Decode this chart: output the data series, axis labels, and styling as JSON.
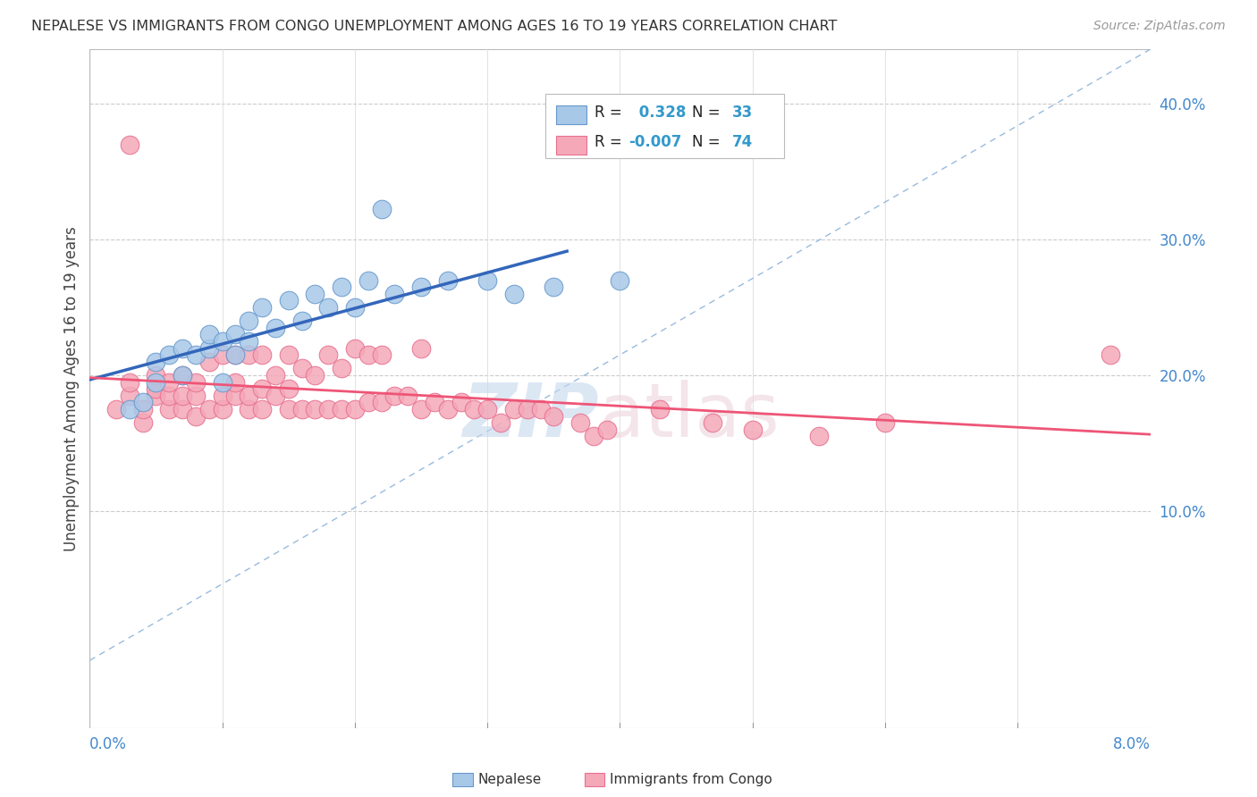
{
  "title": "NEPALESE VS IMMIGRANTS FROM CONGO UNEMPLOYMENT AMONG AGES 16 TO 19 YEARS CORRELATION CHART",
  "source": "Source: ZipAtlas.com",
  "ylabel": "Unemployment Among Ages 16 to 19 years",
  "legend_label1": "Nepalese",
  "legend_label2": "Immigrants from Congo",
  "nepalese_color": "#A8C8E8",
  "nepalese_edge": "#6699CC",
  "congo_color": "#F4A8B8",
  "congo_edge": "#E87090",
  "regression_blue": "#3366BB",
  "regression_pink": "#EE5577",
  "dashed_line_color": "#99BBDD",
  "background_color": "#FFFFFF",
  "grid_color": "#DDDDDD",
  "x_min": 0.0,
  "x_max": 0.08,
  "y_min": -0.06,
  "y_max": 0.44,
  "R_nep": 0.328,
  "N_nep": 33,
  "R_con": -0.007,
  "N_con": 74,
  "nep_x": [
    0.003,
    0.004,
    0.005,
    0.005,
    0.006,
    0.007,
    0.007,
    0.008,
    0.009,
    0.009,
    0.01,
    0.01,
    0.011,
    0.011,
    0.012,
    0.012,
    0.013,
    0.014,
    0.015,
    0.016,
    0.017,
    0.018,
    0.019,
    0.02,
    0.021,
    0.022,
    0.023,
    0.025,
    0.027,
    0.03,
    0.032,
    0.035,
    0.04
  ],
  "nep_y": [
    0.175,
    0.18,
    0.195,
    0.21,
    0.215,
    0.2,
    0.22,
    0.215,
    0.22,
    0.23,
    0.195,
    0.225,
    0.23,
    0.215,
    0.24,
    0.225,
    0.25,
    0.235,
    0.255,
    0.24,
    0.26,
    0.25,
    0.265,
    0.25,
    0.27,
    0.322,
    0.26,
    0.265,
    0.27,
    0.27,
    0.26,
    0.265,
    0.27
  ],
  "con_x": [
    0.002,
    0.003,
    0.003,
    0.004,
    0.004,
    0.005,
    0.005,
    0.005,
    0.006,
    0.006,
    0.006,
    0.007,
    0.007,
    0.007,
    0.008,
    0.008,
    0.008,
    0.009,
    0.009,
    0.01,
    0.01,
    0.01,
    0.011,
    0.011,
    0.011,
    0.012,
    0.012,
    0.012,
    0.013,
    0.013,
    0.013,
    0.014,
    0.014,
    0.015,
    0.015,
    0.015,
    0.016,
    0.016,
    0.017,
    0.017,
    0.018,
    0.018,
    0.019,
    0.019,
    0.02,
    0.02,
    0.021,
    0.021,
    0.022,
    0.022,
    0.023,
    0.024,
    0.025,
    0.025,
    0.026,
    0.027,
    0.028,
    0.029,
    0.03,
    0.031,
    0.032,
    0.033,
    0.034,
    0.035,
    0.037,
    0.038,
    0.039,
    0.043,
    0.047,
    0.05,
    0.055,
    0.06,
    0.077,
    0.003
  ],
  "con_y": [
    0.175,
    0.185,
    0.195,
    0.165,
    0.175,
    0.185,
    0.19,
    0.2,
    0.175,
    0.185,
    0.195,
    0.175,
    0.185,
    0.2,
    0.17,
    0.185,
    0.195,
    0.175,
    0.21,
    0.175,
    0.185,
    0.215,
    0.185,
    0.195,
    0.215,
    0.175,
    0.185,
    0.215,
    0.175,
    0.19,
    0.215,
    0.185,
    0.2,
    0.175,
    0.19,
    0.215,
    0.175,
    0.205,
    0.175,
    0.2,
    0.175,
    0.215,
    0.175,
    0.205,
    0.175,
    0.22,
    0.18,
    0.215,
    0.18,
    0.215,
    0.185,
    0.185,
    0.175,
    0.22,
    0.18,
    0.175,
    0.18,
    0.175,
    0.175,
    0.165,
    0.175,
    0.175,
    0.175,
    0.17,
    0.165,
    0.155,
    0.16,
    0.175,
    0.165,
    0.16,
    0.155,
    0.165,
    0.215,
    0.37
  ]
}
